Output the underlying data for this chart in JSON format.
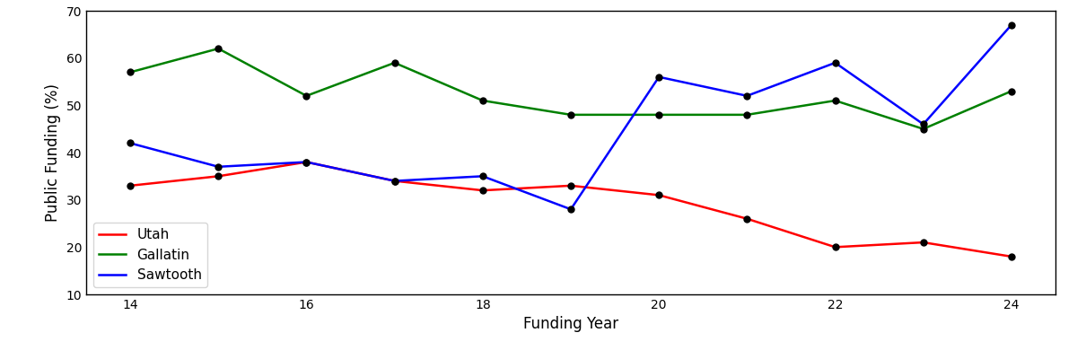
{
  "years": [
    14,
    15,
    16,
    17,
    18,
    19,
    20,
    21,
    22,
    23,
    24
  ],
  "utah": [
    33,
    35,
    38,
    34,
    32,
    33,
    31,
    26,
    20,
    21,
    18
  ],
  "gallatin": [
    57,
    62,
    52,
    59,
    51,
    48,
    48,
    48,
    51,
    45,
    53
  ],
  "sawtooth": [
    42,
    37,
    38,
    34,
    35,
    28,
    56,
    52,
    59,
    46,
    67
  ],
  "utah_color": "#ff0000",
  "gallatin_color": "#008000",
  "sawtooth_color": "#0000ff",
  "marker_color": "black",
  "marker": "o",
  "marker_size": 5,
  "linewidth": 1.8,
  "xlabel": "Funding Year",
  "ylabel": "Public Funding (%)",
  "ylim": [
    10,
    70
  ],
  "xlim": [
    13.5,
    24.5
  ],
  "xticks": [
    14,
    16,
    18,
    20,
    22,
    24
  ],
  "legend_labels": [
    "Utah",
    "Gallatin",
    "Sawtooth"
  ],
  "legend_loc": "lower left",
  "background_color": "#ffffff"
}
